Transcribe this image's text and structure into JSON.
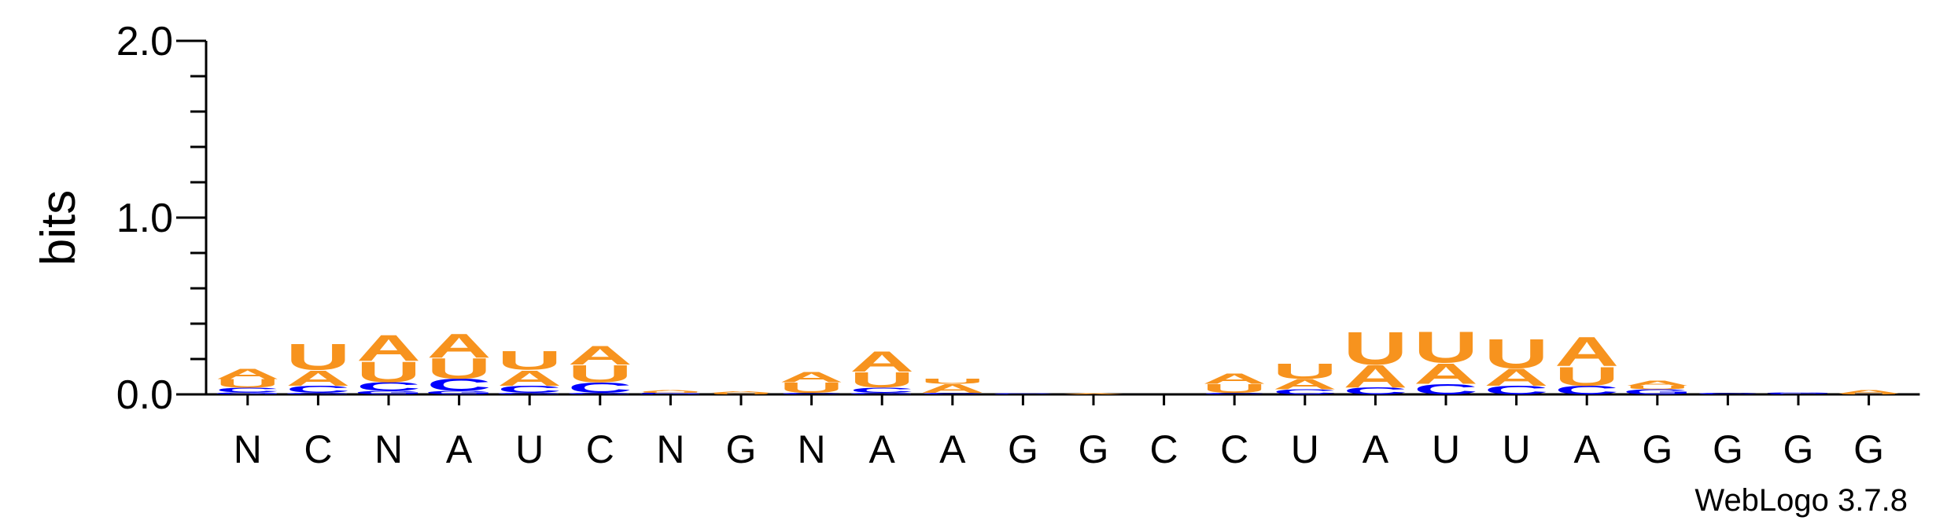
{
  "chart_data": {
    "type": "sequence-logo",
    "ylabel": "bits",
    "ylim": [
      0,
      2.0
    ],
    "yticks": [
      "0.0",
      "1.0",
      "2.0"
    ],
    "xticks": [
      "N",
      "C",
      "N",
      "A",
      "U",
      "C",
      "N",
      "G",
      "N",
      "A",
      "A",
      "G",
      "G",
      "C",
      "C",
      "U",
      "A",
      "U",
      "U",
      "A",
      "G",
      "G",
      "G",
      "G"
    ],
    "colors": {
      "A": "#F7931E",
      "U": "#F7931E",
      "C": "#0000FF",
      "G": "#0000FF"
    },
    "stacks": [
      [
        [
          "G",
          0.012
        ],
        [
          "C",
          0.025
        ],
        [
          "U",
          0.05
        ],
        [
          "A",
          0.06
        ]
      ],
      [
        [
          "G",
          0.01
        ],
        [
          "C",
          0.04
        ],
        [
          "A",
          0.09
        ],
        [
          "U",
          0.15
        ]
      ],
      [
        [
          "G",
          0.02
        ],
        [
          "C",
          0.05
        ],
        [
          "U",
          0.12
        ],
        [
          "A",
          0.15
        ]
      ],
      [
        [
          "G",
          0.02
        ],
        [
          "C",
          0.07
        ],
        [
          "U",
          0.12
        ],
        [
          "A",
          0.14
        ]
      ],
      [
        [
          "G",
          0.01
        ],
        [
          "C",
          0.04
        ],
        [
          "A",
          0.09
        ],
        [
          "U",
          0.11
        ]
      ],
      [
        [
          "G",
          0.01
        ],
        [
          "C",
          0.06
        ],
        [
          "U",
          0.1
        ],
        [
          "A",
          0.11
        ]
      ],
      [
        [
          "G",
          0.005
        ],
        [
          "C",
          0.005
        ],
        [
          "U",
          0.005
        ],
        [
          "A",
          0.01
        ]
      ],
      [
        [
          "U",
          0.01
        ],
        [
          "A",
          0.01
        ]
      ],
      [
        [
          "C",
          0.01
        ],
        [
          "U",
          0.06
        ],
        [
          "A",
          0.06
        ]
      ],
      [
        [
          "G",
          0.01
        ],
        [
          "C",
          0.03
        ],
        [
          "U",
          0.09
        ],
        [
          "A",
          0.12
        ]
      ],
      [
        [
          "C",
          0.01
        ],
        [
          "A",
          0.05
        ],
        [
          "U",
          0.03
        ]
      ],
      [
        [
          "C",
          0.005
        ]
      ],
      [
        [
          "A",
          0.005
        ]
      ],
      [],
      [
        [
          "C",
          0.01
        ],
        [
          "U",
          0.05
        ],
        [
          "A",
          0.06
        ]
      ],
      [
        [
          "C",
          0.03
        ],
        [
          "A",
          0.06
        ],
        [
          "U",
          0.09
        ]
      ],
      [
        [
          "C",
          0.04
        ],
        [
          "A",
          0.13
        ],
        [
          "U",
          0.19
        ]
      ],
      [
        [
          "C",
          0.06
        ],
        [
          "A",
          0.12
        ],
        [
          "U",
          0.18
        ]
      ],
      [
        [
          "C",
          0.05
        ],
        [
          "A",
          0.1
        ],
        [
          "U",
          0.17
        ]
      ],
      [
        [
          "C",
          0.05
        ],
        [
          "U",
          0.11
        ],
        [
          "A",
          0.17
        ]
      ],
      [
        [
          "G",
          0.03
        ],
        [
          "U",
          0.02
        ],
        [
          "A",
          0.03
        ]
      ],
      [
        [
          "C",
          0.01
        ]
      ],
      [
        [
          "C",
          0.005
        ],
        [
          "G",
          0.005
        ]
      ],
      [
        [
          "U",
          0.005
        ],
        [
          "A",
          0.02
        ]
      ]
    ]
  },
  "credit": "WebLogo 3.7.8"
}
